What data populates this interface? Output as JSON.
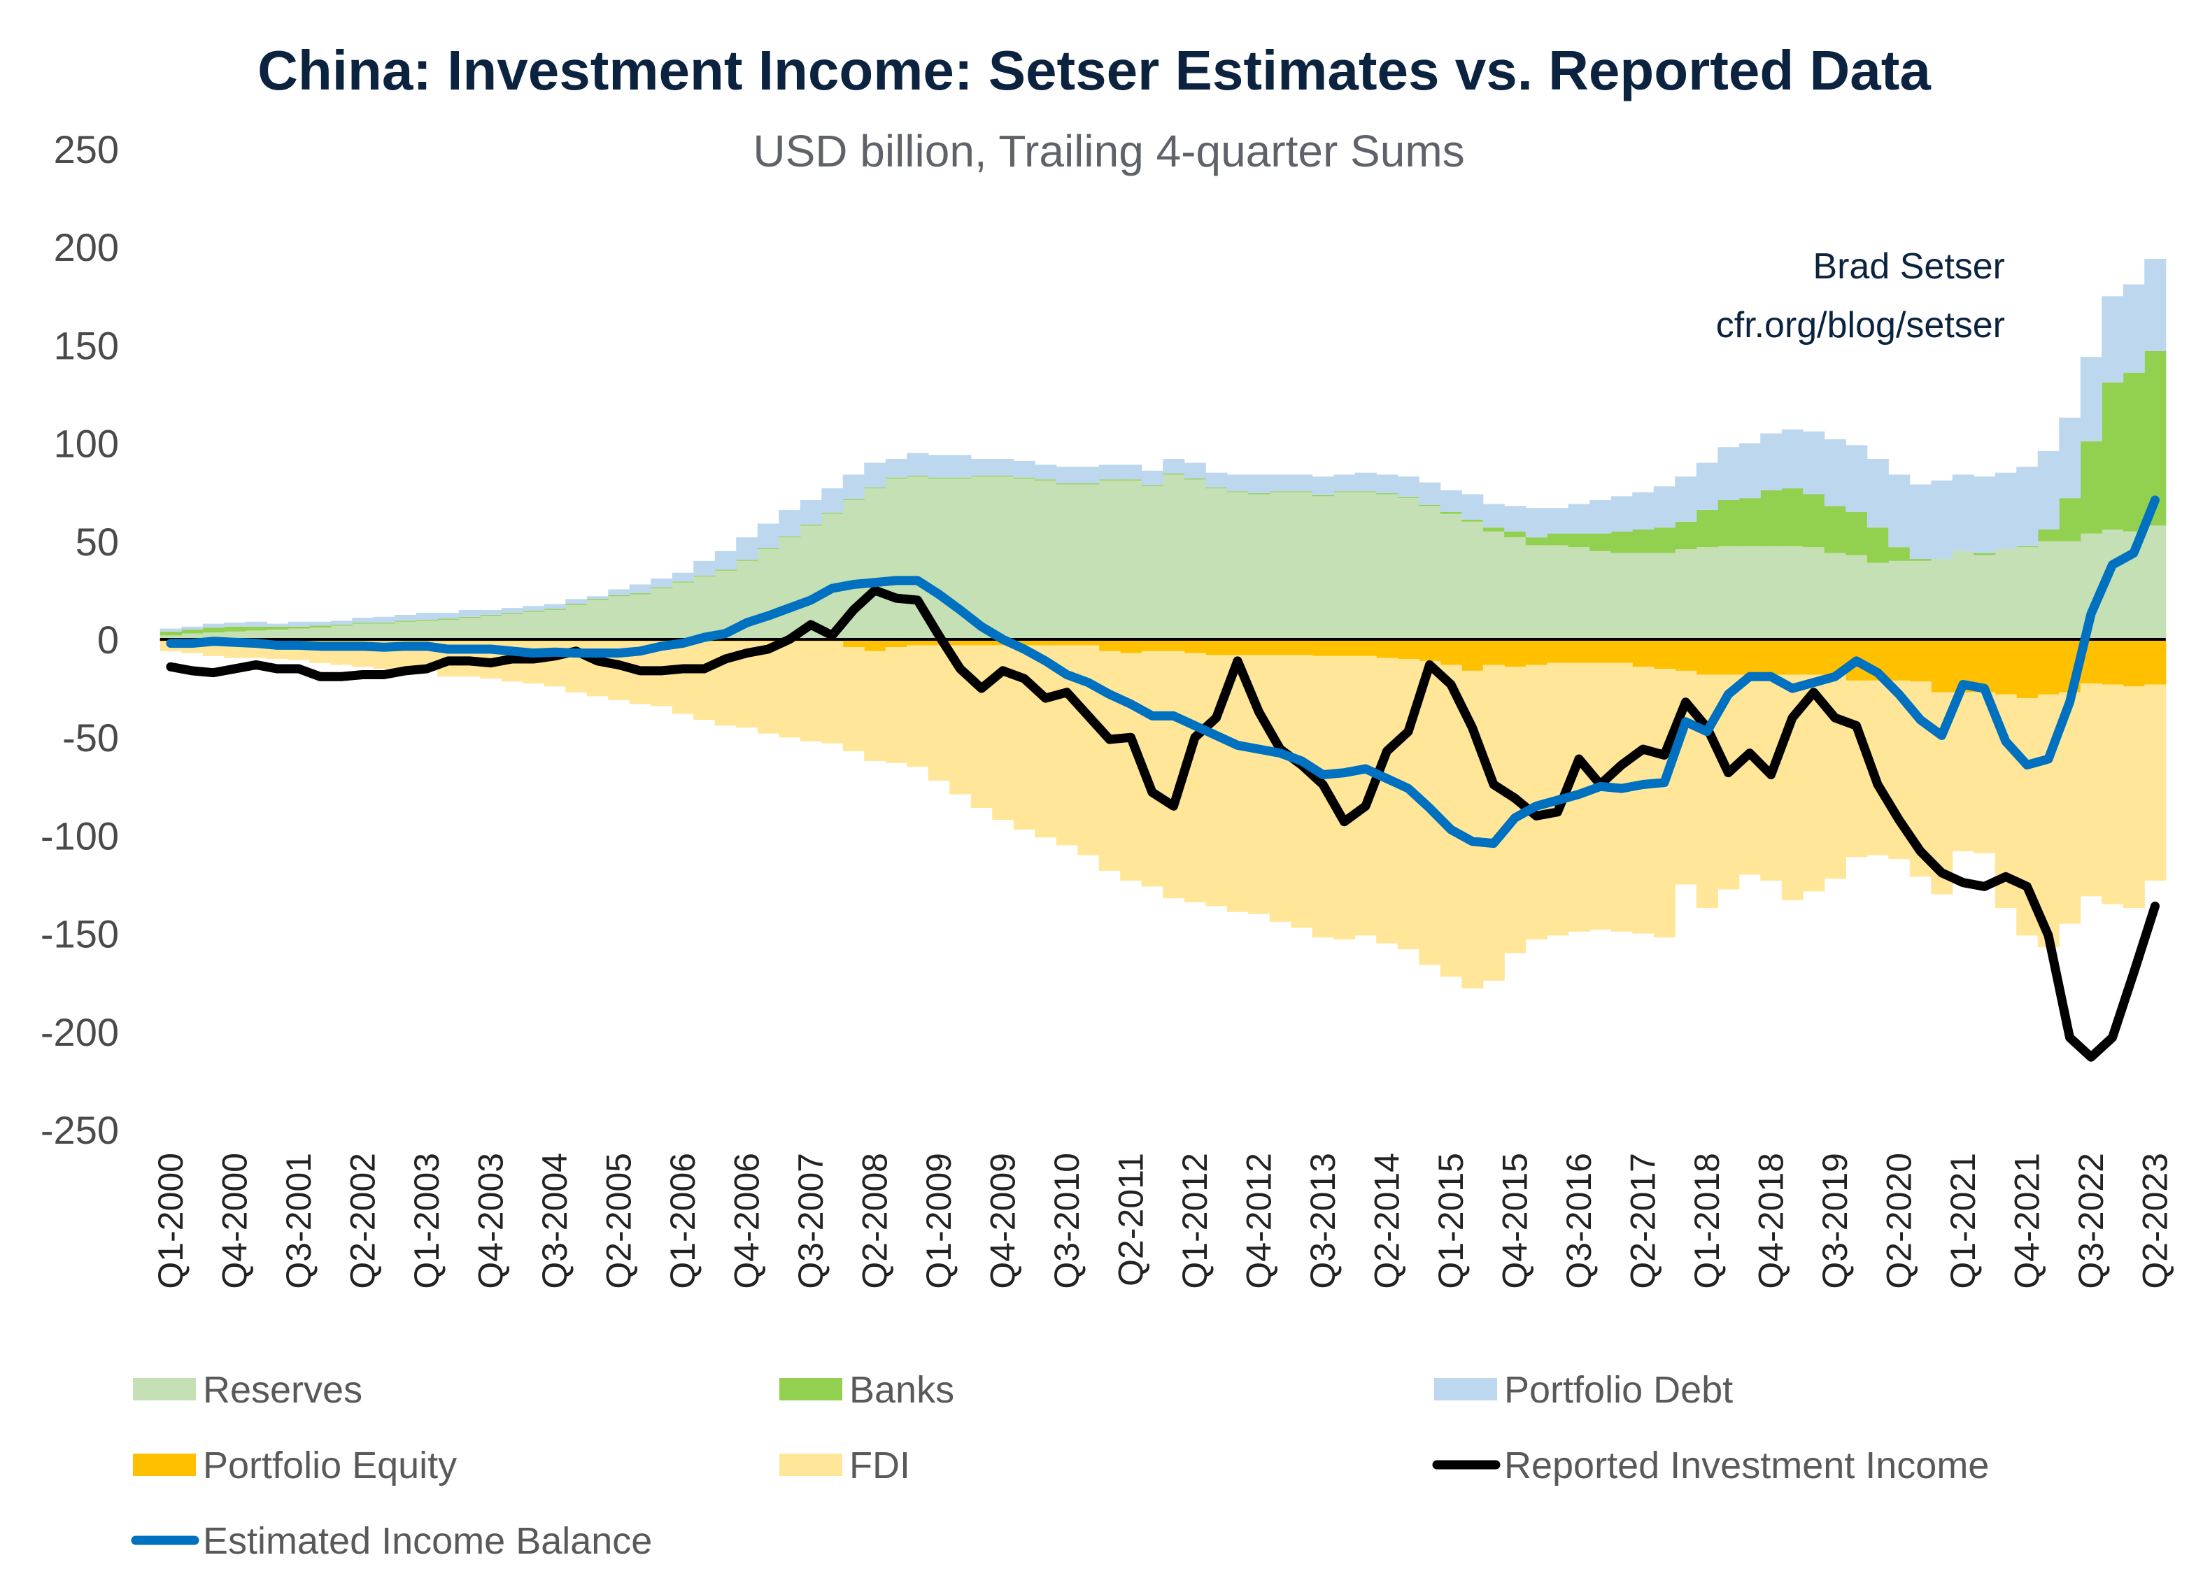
{
  "chart_data": {
    "type": "area",
    "title": "China: Investment Income: Setser Estimates vs. Reported Data",
    "subtitle": "USD billion, Trailing 4-quarter Sums",
    "credit": [
      "Brad Setser",
      "cfr.org/blog/setser"
    ],
    "ylim": [
      -250,
      250
    ],
    "yticks": [
      250,
      200,
      150,
      100,
      50,
      0,
      -50,
      -100,
      -150,
      -200,
      -250
    ],
    "grid": false,
    "legend_position": "bottom",
    "x": [
      "Q1-2000",
      "Q2-2000",
      "Q3-2000",
      "Q4-2000",
      "Q1-2001",
      "Q2-2001",
      "Q3-2001",
      "Q4-2001",
      "Q1-2002",
      "Q2-2002",
      "Q3-2002",
      "Q4-2002",
      "Q1-2003",
      "Q2-2003",
      "Q3-2003",
      "Q4-2003",
      "Q1-2004",
      "Q2-2004",
      "Q3-2004",
      "Q4-2004",
      "Q1-2005",
      "Q2-2005",
      "Q3-2005",
      "Q4-2005",
      "Q1-2006",
      "Q2-2006",
      "Q3-2006",
      "Q4-2006",
      "Q1-2007",
      "Q2-2007",
      "Q3-2007",
      "Q4-2007",
      "Q1-2008",
      "Q2-2008",
      "Q3-2008",
      "Q4-2008",
      "Q1-2009",
      "Q2-2009",
      "Q3-2009",
      "Q4-2009",
      "Q1-2010",
      "Q2-2010",
      "Q3-2010",
      "Q4-2010",
      "Q1-2011",
      "Q2-2011",
      "Q3-2011",
      "Q4-2011",
      "Q1-2012",
      "Q2-2012",
      "Q3-2012",
      "Q4-2012",
      "Q1-2013",
      "Q2-2013",
      "Q3-2013",
      "Q4-2013",
      "Q1-2014",
      "Q2-2014",
      "Q3-2014",
      "Q4-2014",
      "Q1-2015",
      "Q2-2015",
      "Q3-2015",
      "Q4-2015",
      "Q1-2016",
      "Q2-2016",
      "Q3-2016",
      "Q4-2016",
      "Q1-2017",
      "Q2-2017",
      "Q3-2017",
      "Q4-2017",
      "Q1-2018",
      "Q2-2018",
      "Q3-2018",
      "Q4-2018",
      "Q1-2019",
      "Q2-2019",
      "Q3-2019",
      "Q4-2019",
      "Q1-2020",
      "Q2-2020",
      "Q3-2020",
      "Q4-2020",
      "Q1-2021",
      "Q2-2021",
      "Q3-2021",
      "Q4-2021",
      "Q1-2022",
      "Q2-2022",
      "Q3-2022",
      "Q4-2022",
      "Q1-2023",
      "Q2-2023"
    ],
    "xticks": [
      "Q1-2000",
      "Q4-2000",
      "Q3-2001",
      "Q2-2002",
      "Q1-2003",
      "Q4-2003",
      "Q3-2004",
      "Q2-2005",
      "Q1-2006",
      "Q4-2006",
      "Q3-2007",
      "Q2-2008",
      "Q1-2009",
      "Q4-2009",
      "Q3-2010",
      "Q2-2011",
      "Q1-2012",
      "Q4-2012",
      "Q3-2013",
      "Q2-2014",
      "Q1-2015",
      "Q4-2015",
      "Q3-2016",
      "Q2-2017",
      "Q1-2018",
      "Q4-2018",
      "Q3-2019",
      "Q2-2020",
      "Q1-2021",
      "Q4-2021",
      "Q3-2022",
      "Q2-2023"
    ],
    "stacked_series": [
      {
        "name": "Reserves",
        "color": "#C5E0B4",
        "values": [
          2,
          3,
          3.5,
          4,
          4.5,
          5,
          5.5,
          6,
          7,
          8,
          8,
          9,
          9.5,
          10,
          11,
          12,
          13,
          14,
          15,
          17.5,
          20,
          22,
          23,
          26,
          29,
          32,
          35,
          40,
          46,
          52,
          58,
          64,
          71,
          77,
          82,
          83,
          82,
          82,
          83,
          83,
          82,
          81,
          79,
          79,
          81,
          81,
          78,
          84,
          81.5,
          77,
          75,
          74,
          75,
          75,
          73,
          75,
          75,
          74,
          72,
          68,
          64,
          60,
          55,
          52,
          48,
          48,
          47,
          45,
          44,
          44,
          44,
          46,
          47,
          47.5,
          47.5,
          47.5,
          47.5,
          47,
          44,
          43,
          39,
          40,
          40,
          41,
          45,
          43,
          46,
          47,
          50,
          50,
          54,
          56,
          55,
          58
        ]
      },
      {
        "name": "Banks",
        "color": "#92D050",
        "values": [
          2,
          2,
          2.5,
          2.5,
          2,
          1.5,
          1,
          1,
          0.5,
          0.5,
          0.5,
          0.5,
          0.5,
          0.5,
          0.5,
          0.5,
          0.5,
          0.5,
          0.5,
          0.5,
          0.5,
          0.5,
          0.5,
          0.5,
          0.5,
          0.5,
          0.5,
          0.5,
          0.5,
          0.5,
          0.5,
          0.5,
          0.5,
          0.5,
          0.5,
          0.5,
          0.5,
          0.5,
          0.5,
          0.5,
          0.5,
          0.5,
          0.5,
          0.5,
          0.5,
          0.5,
          0.5,
          0.5,
          0.5,
          0.5,
          0.5,
          0.5,
          0.5,
          0.5,
          0.5,
          0.5,
          0.5,
          0.5,
          0.5,
          0.5,
          1,
          1,
          2,
          3,
          4,
          6,
          7,
          9,
          11,
          12,
          13,
          14,
          19,
          23.5,
          24.5,
          28.5,
          29.5,
          27,
          24,
          22,
          18,
          7,
          1,
          0,
          0,
          1,
          0,
          0.5,
          6,
          22,
          47,
          75,
          81,
          89
        ]
      },
      {
        "name": "Portfolio Debt",
        "color": "#BDD7EE",
        "values": [
          1.5,
          1.5,
          2,
          2,
          2.5,
          1.5,
          2.5,
          2,
          2,
          2.5,
          3,
          3,
          3.5,
          3,
          3.5,
          2.5,
          2.5,
          2.5,
          2.5,
          2.5,
          1.5,
          3,
          4.5,
          4.5,
          4.5,
          7.5,
          9.5,
          11.5,
          12.5,
          13.5,
          12.5,
          12.5,
          12.5,
          12.5,
          9.5,
          11.5,
          11.5,
          11.5,
          8.5,
          8.5,
          8.5,
          7.5,
          8.5,
          8.5,
          7.5,
          7.5,
          7.5,
          7.5,
          8,
          7.5,
          8.5,
          9.5,
          8.5,
          8.5,
          9.5,
          8.5,
          9.5,
          9.5,
          10.5,
          11.5,
          11,
          13,
          12,
          13,
          15,
          13,
          15,
          17,
          18,
          19,
          21,
          23,
          24,
          27,
          28,
          29,
          30,
          32,
          34,
          34,
          35,
          37,
          38,
          40,
          39,
          39,
          39,
          40.5,
          40,
          41,
          43,
          44,
          45,
          47
        ]
      },
      {
        "name": "Portfolio Equity",
        "color": "#FFC000",
        "values": [
          -1,
          -1,
          -1,
          -1,
          -1,
          -1,
          -1,
          -1,
          -1,
          -1,
          -1,
          -1,
          -1,
          -1,
          -1,
          -1,
          -1,
          -1,
          -1,
          -1,
          -1,
          -1,
          -1,
          -1,
          -1,
          -1,
          -1,
          -1,
          -1,
          -1,
          -1,
          -1,
          -4,
          -6,
          -4,
          -3,
          -3,
          -3,
          -3,
          -3,
          -3,
          -3,
          -3,
          -3,
          -6,
          -7,
          -6,
          -6,
          -7,
          -8,
          -8,
          -8,
          -8,
          -8,
          -8.5,
          -8.5,
          -8.5,
          -9.5,
          -10,
          -11,
          -13,
          -16,
          -13,
          -14,
          -13,
          -12,
          -12,
          -12,
          -12,
          -14,
          -15,
          -16,
          -18,
          -18,
          -18,
          -18,
          -18,
          -18,
          -18,
          -21,
          -21,
          -21,
          -21.5,
          -27,
          -27,
          -27,
          -28,
          -30,
          -28,
          -27,
          -22.5,
          -23,
          -24,
          -23
        ]
      },
      {
        "name": "FDI",
        "color": "#FFE699",
        "values": [
          -5,
          -6,
          -7.5,
          -8.5,
          -8.5,
          -9,
          -9.5,
          -11,
          -12,
          -13,
          -14,
          -14,
          -15,
          -18,
          -18,
          -19,
          -20.5,
          -21.5,
          -23,
          -26,
          -28,
          -30,
          -32,
          -33,
          -37,
          -40,
          -43,
          -44,
          -47,
          -49,
          -51,
          -52,
          -53,
          -56,
          -59,
          -62,
          -69,
          -76,
          -83,
          -89,
          -94,
          -98,
          -102,
          -107,
          -112,
          -116,
          -120,
          -126,
          -127,
          -128,
          -131,
          -132,
          -136,
          -139,
          -143.5,
          -144.5,
          -142.5,
          -145.5,
          -148,
          -155,
          -159,
          -162,
          -161,
          -146,
          -140,
          -139,
          -137,
          -136,
          -137,
          -136,
          -137,
          -109,
          -119,
          -109.5,
          -102,
          -105,
          -115,
          -110.5,
          -104,
          -90,
          -89,
          -91,
          -99.5,
          -103,
          -81,
          -82,
          -109,
          -121,
          -129,
          -118,
          -108.5,
          -112,
          -113,
          -100
        ]
      }
    ],
    "line_series": [
      {
        "name": "Reported Investment Income",
        "color": "#000000",
        "values": [
          -14,
          -16,
          -17,
          -15,
          -13,
          -15,
          -15,
          -19,
          -19,
          -18,
          -18,
          -16,
          -15,
          -11,
          -11,
          -12,
          -10,
          -10,
          -8.5,
          -6,
          -11,
          -13,
          -16,
          -16,
          -15,
          -15,
          -10,
          -7,
          -5,
          0,
          7.5,
          2,
          15,
          25,
          21,
          20,
          2,
          -15,
          -25,
          -16,
          -20,
          -30,
          -27,
          -39,
          -51,
          -50,
          -78,
          -85,
          -50,
          -40,
          -11,
          -37,
          -56,
          -64,
          -74,
          -93,
          -85,
          -57,
          -47,
          -13,
          -23,
          -45,
          -74,
          -81,
          -90,
          -88,
          -61,
          -74,
          -64,
          -56,
          -59,
          -32,
          -45,
          -68,
          -58,
          -69,
          -40,
          -27,
          -40,
          -44,
          -74,
          -92,
          -108,
          -119,
          -124,
          -126,
          -121,
          -126,
          -151,
          -203,
          -213,
          -203,
          -170,
          -136
        ]
      },
      {
        "name": "Estimated Income Balance",
        "color": "#0070C0",
        "values": [
          -2,
          -2,
          -1,
          -1.5,
          -2,
          -3,
          -3,
          -3.5,
          -3.5,
          -3.5,
          -4,
          -3.5,
          -3.5,
          -5,
          -5,
          -5,
          -6,
          -7,
          -6.5,
          -7,
          -7,
          -7,
          -6,
          -3.5,
          -2,
          1,
          3,
          8.5,
          12,
          16,
          20,
          26,
          28,
          29,
          30,
          30,
          23,
          15,
          6.5,
          0,
          -5,
          -11,
          -18,
          -22,
          -28,
          -33,
          -39,
          -39,
          -44,
          -49,
          -54,
          -56,
          -58,
          -62,
          -69,
          -68,
          -66,
          -71,
          -76,
          -86,
          -97,
          -103,
          -104,
          -91,
          -85,
          -82,
          -79,
          -75,
          -76,
          -74,
          -73,
          -42,
          -47,
          -28,
          -19,
          -19,
          -25,
          -22,
          -19,
          -11,
          -17,
          -28,
          -41,
          -49,
          -23,
          -25,
          -52,
          -64,
          -61,
          -32,
          13,
          38,
          44,
          71
        ]
      }
    ],
    "legend": [
      {
        "label": "Reserves",
        "kind": "area",
        "color": "#C5E0B4"
      },
      {
        "label": "Banks",
        "kind": "area",
        "color": "#92D050"
      },
      {
        "label": "Portfolio Debt",
        "kind": "area",
        "color": "#BDD7EE"
      },
      {
        "label": "Portfolio Equity",
        "kind": "area",
        "color": "#FFC000"
      },
      {
        "label": "FDI",
        "kind": "area",
        "color": "#FFE699"
      },
      {
        "label": "Reported Investment Income",
        "kind": "line",
        "color": "#000000"
      },
      {
        "label": "Estimated Income Balance",
        "kind": "line",
        "color": "#0070C0"
      }
    ]
  }
}
